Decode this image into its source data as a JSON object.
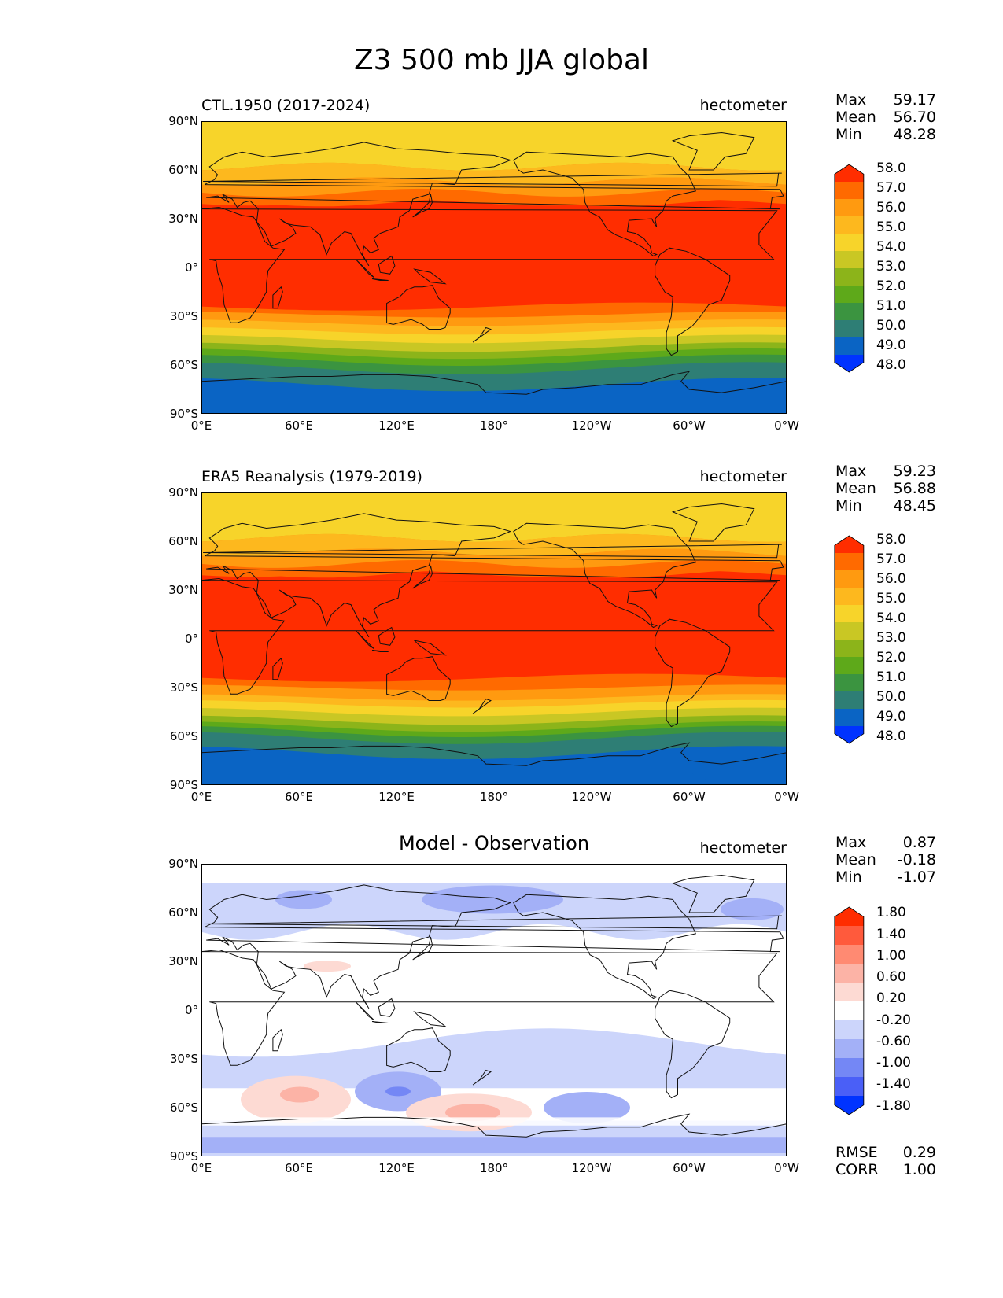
{
  "title": "Z3 500 mb JJA global",
  "x_ticks": [
    "0°E",
    "60°E",
    "120°E",
    "180°",
    "120°W",
    "60°W",
    "0°W"
  ],
  "y_ticks": [
    "90°N",
    "60°N",
    "30°N",
    "0°",
    "30°S",
    "60°S",
    "90°S"
  ],
  "panels": [
    {
      "label": "CTL.1950 (2017-2024)",
      "units": "hectometer",
      "stats": [
        {
          "name": "Max",
          "value": "59.17"
        },
        {
          "name": "Mean",
          "value": "56.70"
        },
        {
          "name": "Min",
          "value": "48.28"
        }
      ],
      "colorbar": {
        "labels": [
          "58.0",
          "57.0",
          "56.0",
          "55.0",
          "54.0",
          "53.0",
          "52.0",
          "51.0",
          "50.0",
          "49.0",
          "48.0"
        ],
        "colors": [
          "#ff2d00",
          "#ff6a00",
          "#ff9a10",
          "#fdb81e",
          "#f7d42a",
          "#c9c724",
          "#8cb41a",
          "#5ea91a",
          "#3b9440",
          "#2e7e75",
          "#0a64c4",
          "#0033ff"
        ]
      }
    },
    {
      "label": "ERA5 Reanalysis (1979-2019)",
      "units": "hectometer",
      "stats": [
        {
          "name": "Max",
          "value": "59.23"
        },
        {
          "name": "Mean",
          "value": "56.88"
        },
        {
          "name": "Min",
          "value": "48.45"
        }
      ],
      "colorbar": {
        "labels": [
          "58.0",
          "57.0",
          "56.0",
          "55.0",
          "54.0",
          "53.0",
          "52.0",
          "51.0",
          "50.0",
          "49.0",
          "48.0"
        ],
        "colors": [
          "#ff2d00",
          "#ff6a00",
          "#ff9a10",
          "#fdb81e",
          "#f7d42a",
          "#c9c724",
          "#8cb41a",
          "#5ea91a",
          "#3b9440",
          "#2e7e75",
          "#0a64c4",
          "#0033ff"
        ]
      }
    },
    {
      "label": "Model - Observation",
      "units": "hectometer",
      "stats": [
        {
          "name": "Max",
          "value": "0.87"
        },
        {
          "name": "Mean",
          "value": "-0.18"
        },
        {
          "name": "Min",
          "value": "-1.07"
        }
      ],
      "extra_stats": [
        {
          "name": "RMSE",
          "value": "0.29"
        },
        {
          "name": "CORR",
          "value": "1.00"
        }
      ],
      "colorbar": {
        "labels": [
          "1.80",
          "1.40",
          "1.00",
          "0.60",
          "0.20",
          "-0.20",
          "-0.60",
          "-1.00",
          "-1.40",
          "-1.80"
        ],
        "colors": [
          "#ff2d00",
          "#ff5a3c",
          "#ff8a72",
          "#fcb3a6",
          "#fddad3",
          "#ffffff",
          "#ccd5fb",
          "#a3b0f7",
          "#7487f5",
          "#4a5ff7",
          "#0033ff"
        ]
      }
    }
  ]
}
